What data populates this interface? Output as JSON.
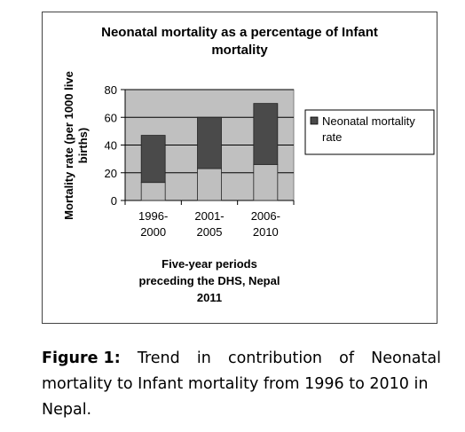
{
  "chart_data": {
    "type": "bar",
    "stacked": true,
    "title_lines": [
      "Neonatal mortality as a percentage of Infant",
      "mortality"
    ],
    "ylabel_lines": [
      "Mortality rate (per 1000 live",
      "births)"
    ],
    "xlabel_lines": [
      "Five-year periods",
      "preceding the DHS, Nepal",
      "2011"
    ],
    "categories": [
      [
        "1996-",
        "2000"
      ],
      [
        "2001-",
        "2005"
      ],
      [
        "2006-",
        "2010"
      ]
    ],
    "yticks": [
      "0",
      "20",
      "40",
      "60",
      "80"
    ],
    "ylim": [
      0,
      80
    ],
    "series": [
      {
        "name": "",
        "values": [
          13,
          23,
          26
        ],
        "color": "#bfbfbf"
      },
      {
        "name": "Neonatal mortality rate",
        "values": [
          34,
          37,
          44
        ],
        "color": "#4a4a4a"
      }
    ],
    "legend": {
      "position": "right",
      "label_lines": [
        "Neonatal mortality",
        "rate"
      ]
    },
    "plot_background": "#c0c0c0",
    "grid": true
  },
  "caption": {
    "figure_label": "Figure 1:",
    "line1_words": [
      "Trend",
      "in",
      "contribution",
      "of",
      "Neonatal"
    ],
    "line2": "mortality to Infant mortality from 1996 to 2010 in",
    "line3": "Nepal."
  }
}
